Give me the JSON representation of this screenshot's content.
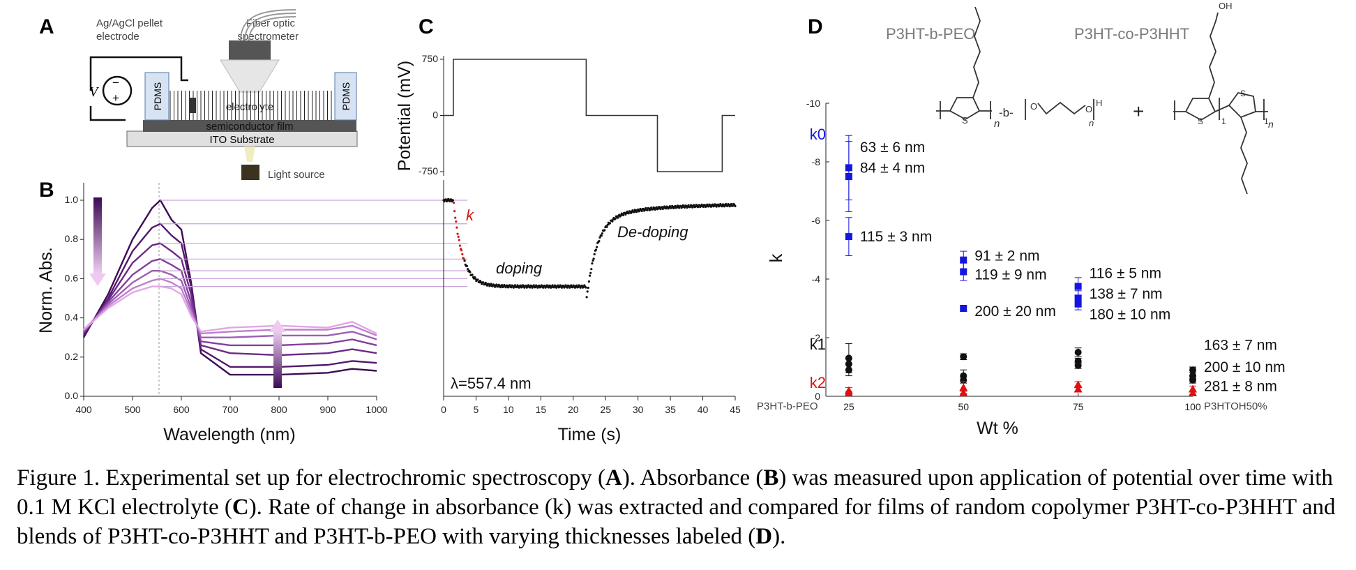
{
  "panels": {
    "a": {
      "letter": "A",
      "electrode_label": [
        "Ag/AgCl pellet",
        "electrode"
      ],
      "spectrometer_label": [
        "Fiber optic",
        "spectrometer"
      ],
      "voltage_symbol": "V",
      "pdms_label": "PDMS",
      "electrolyte_label": "electrolyte",
      "film_label": "semiconductor film",
      "substrate_label": "ITO Substrate",
      "light_label": "Light source"
    },
    "b": {
      "letter": "B"
    },
    "c": {
      "letter": "C"
    },
    "d": {
      "letter": "D",
      "structure_titles": [
        "P3HT-b-PEO",
        "P3HT-co-P3HHT"
      ],
      "plus_sign": "+",
      "block_label": "-b-",
      "oh_label": "OH",
      "h_label": "H",
      "o_label": "O",
      "s_label": "S",
      "n_label": "n",
      "one_label": "1",
      "left_end_label": "P3HT-b-PEO",
      "right_end_label": "P3HTOH50%"
    }
  },
  "caption": {
    "s1": "Figure 1. Experimental set up for electrochromic spectroscopy (",
    "b1": "A",
    "s2": "). Absorbance (",
    "b2": "B",
    "s3": ") was measured upon application of potential over time with 0.1 M KCl electrolyte (",
    "b3": "C",
    "s4": "). Rate of change in absorbance (k) was extracted and compared for films of random copolymer P3HT-co-P3HHT and blends of P3HT-co-P3HHT and P3HT-b-PEO with varying thicknesses labeled (",
    "b4": "D",
    "s5": ")."
  },
  "chart_data": [
    {
      "id": "absorbance-spectra",
      "type": "line",
      "xlabel": "Wavelength (nm)",
      "ylabel": "Norm. Abs.",
      "xlim": [
        400,
        1000
      ],
      "ylim": [
        0.0,
        1.0
      ],
      "x_ticks": [
        "400",
        "500",
        "600",
        "700",
        "800",
        "900",
        "1000"
      ],
      "y_ticks": [
        "0.0",
        "0.2",
        "0.4",
        "0.6",
        "0.8",
        "1.0"
      ],
      "colors": [
        "#3d0a55",
        "#54186e",
        "#6c2a86",
        "#83409b",
        "#9e5fb4",
        "#c07fce",
        "#e2a6e6"
      ],
      "x": [
        400,
        450,
        500,
        540,
        557,
        580,
        600,
        620,
        640,
        700,
        800,
        900,
        950,
        1000
      ],
      "series": [
        {
          "values": [
            0.3,
            0.52,
            0.8,
            0.96,
            1.0,
            0.9,
            0.85,
            0.58,
            0.22,
            0.11,
            0.11,
            0.12,
            0.14,
            0.13
          ]
        },
        {
          "values": [
            0.31,
            0.5,
            0.74,
            0.86,
            0.88,
            0.82,
            0.78,
            0.56,
            0.24,
            0.15,
            0.15,
            0.16,
            0.18,
            0.17
          ]
        },
        {
          "values": [
            0.32,
            0.49,
            0.68,
            0.77,
            0.78,
            0.74,
            0.7,
            0.52,
            0.26,
            0.22,
            0.21,
            0.22,
            0.24,
            0.22
          ]
        },
        {
          "values": [
            0.33,
            0.48,
            0.62,
            0.69,
            0.7,
            0.67,
            0.64,
            0.48,
            0.28,
            0.26,
            0.26,
            0.27,
            0.29,
            0.26
          ]
        },
        {
          "values": [
            0.33,
            0.47,
            0.58,
            0.64,
            0.64,
            0.62,
            0.59,
            0.45,
            0.3,
            0.3,
            0.31,
            0.31,
            0.33,
            0.29
          ]
        },
        {
          "values": [
            0.34,
            0.46,
            0.55,
            0.59,
            0.6,
            0.58,
            0.55,
            0.43,
            0.32,
            0.33,
            0.34,
            0.34,
            0.36,
            0.31
          ]
        },
        {
          "values": [
            0.34,
            0.45,
            0.53,
            0.56,
            0.56,
            0.55,
            0.52,
            0.41,
            0.33,
            0.35,
            0.36,
            0.35,
            0.38,
            0.32
          ]
        }
      ],
      "marker_line_x": 557
    },
    {
      "id": "potential-step",
      "type": "line",
      "ylabel": "Potential (mV)",
      "xlim": [
        0,
        45
      ],
      "ylim": [
        -750,
        750
      ],
      "y_ticks": [
        "750",
        "0",
        "-750"
      ],
      "x": [
        0,
        1.5,
        1.5,
        22,
        22,
        33,
        33,
        43,
        43,
        45
      ],
      "values": [
        0,
        0,
        750,
        750,
        0,
        0,
        -750,
        -750,
        0,
        0
      ]
    },
    {
      "id": "absorbance-kinetics",
      "type": "scatter",
      "xlabel": "Time (s)",
      "xlim": [
        0,
        45
      ],
      "ylim": [
        0.0,
        1.0
      ],
      "x_ticks": [
        "0",
        "5",
        "10",
        "15",
        "20",
        "25",
        "30",
        "35",
        "40",
        "45"
      ],
      "annotations": {
        "rate": "k",
        "doping": "doping",
        "dedoping": "De-doping",
        "wavelength": "λ=557.4 nm"
      },
      "colors": {
        "data": "#111111",
        "fit": "#d01818"
      },
      "fit_window": [
        1.5,
        3.2
      ]
    },
    {
      "id": "rate-constants",
      "type": "scatter",
      "xlabel": "Wt %",
      "ylabel": "k",
      "xlim": [
        20,
        100
      ],
      "ylim": [
        0,
        -10
      ],
      "x_ticks": [
        "25",
        "50",
        "75",
        "100"
      ],
      "y_ticks": [
        "-10",
        "-8",
        "-6",
        "-4",
        "-2",
        "0"
      ],
      "colors": {
        "k0": "#1515e0",
        "k1": "#111111",
        "k2": "#e01010"
      },
      "series": [
        {
          "name": "k0",
          "x": [
            25,
            25,
            25,
            50,
            50,
            50,
            75,
            75,
            75
          ],
          "values": [
            -7.8,
            -7.5,
            -5.45,
            -4.65,
            -4.25,
            -3.0,
            -3.75,
            -3.35,
            -3.15
          ],
          "err": [
            1.1,
            1.2,
            0.65,
            0.3,
            0.3,
            0.1,
            0.3,
            0.25,
            0.2
          ]
        },
        {
          "name": "k1",
          "x": [
            25,
            25,
            25,
            50,
            50,
            50,
            75,
            75,
            75,
            100,
            100,
            100
          ],
          "values": [
            -1.3,
            -1.1,
            -0.9,
            -1.35,
            -0.7,
            -0.55,
            -1.5,
            -1.2,
            -1.05,
            -0.9,
            -0.7,
            -0.55
          ],
          "err": [
            0.5,
            0.2,
            0.2,
            0.1,
            0.2,
            0.1,
            0.15,
            0.1,
            0.1,
            0.1,
            0.1,
            0.1
          ]
        },
        {
          "name": "k2",
          "x": [
            25,
            25,
            50,
            50,
            75,
            75,
            100,
            100
          ],
          "values": [
            -0.2,
            -0.12,
            -0.3,
            -0.12,
            -0.4,
            -0.25,
            -0.25,
            -0.12
          ],
          "err": [
            0.1,
            0.05,
            0.2,
            0.05,
            0.1,
            0.1,
            0.1,
            0.05
          ]
        }
      ],
      "thickness_labels": [
        {
          "x": 25,
          "y": -8.5,
          "text": "63 ± 6 nm"
        },
        {
          "x": 25,
          "y": -7.8,
          "text": "84 ± 4 nm"
        },
        {
          "x": 25,
          "y": -5.45,
          "text": "115 ± 3 nm"
        },
        {
          "x": 50,
          "y": -4.8,
          "text": "91 ± 2 nm"
        },
        {
          "x": 50,
          "y": -4.15,
          "text": "119 ± 9 nm"
        },
        {
          "x": 50,
          "y": -2.9,
          "text": "200 ± 20 nm"
        },
        {
          "x": 75,
          "y": -4.2,
          "text": "116 ± 5 nm"
        },
        {
          "x": 75,
          "y": -3.5,
          "text": "138 ± 7 nm"
        },
        {
          "x": 75,
          "y": -2.8,
          "text": "180 ± 10 nm"
        },
        {
          "x": 100,
          "y": -1.75,
          "text": "163 ± 7 nm"
        },
        {
          "x": 100,
          "y": -1.0,
          "text": "200 ± 10 nm"
        },
        {
          "x": 100,
          "y": -0.35,
          "text": "281 ± 8 nm"
        }
      ]
    }
  ]
}
